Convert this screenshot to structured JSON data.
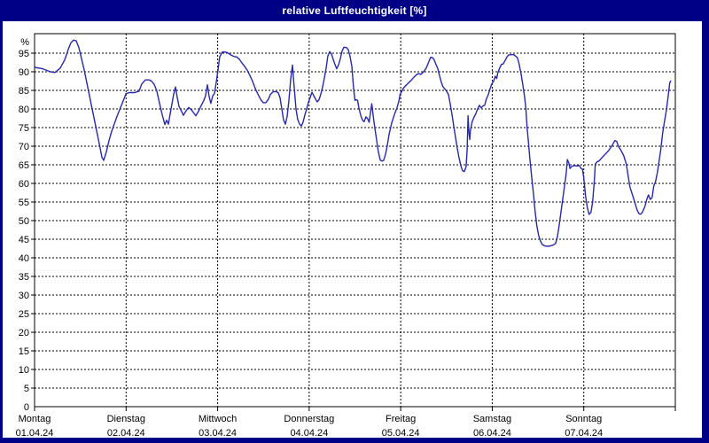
{
  "window": {
    "title": "relative Luftfeuchtigkeit [%]",
    "titlebar_color": "#000087",
    "border_color": "#000087",
    "background": "#ffffff"
  },
  "chart_data": {
    "type": "line",
    "title": "relative Luftfeuchtigkeit [%]",
    "y_unit_label": "%",
    "ylabel": "relative Luftfeuchtigkeit",
    "y_min": 0,
    "y_max": 100,
    "y_tick_step": 5,
    "y_ticks": [
      0,
      5,
      10,
      15,
      20,
      25,
      30,
      35,
      40,
      45,
      50,
      55,
      60,
      65,
      70,
      75,
      80,
      85,
      90,
      95
    ],
    "grid": "dashed",
    "legend": "none",
    "line_color": "#2828aa",
    "frame_color": "#000000",
    "x_days": [
      {
        "name": "Montag",
        "date": "01.04.24"
      },
      {
        "name": "Dienstag",
        "date": "02.04.24"
      },
      {
        "name": "Mittwoch",
        "date": "03.04.24"
      },
      {
        "name": "Donnerstag",
        "date": "04.04.24"
      },
      {
        "name": "Freitag",
        "date": "05.04.24"
      },
      {
        "name": "Samstag",
        "date": "06.04.24"
      },
      {
        "name": "Sonntag",
        "date": "07.04.24"
      }
    ],
    "points": [
      [
        0.0,
        91.2
      ],
      [
        0.087,
        90.8
      ],
      [
        0.174,
        90.0
      ],
      [
        0.223,
        89.8
      ],
      [
        0.281,
        91.0
      ],
      [
        0.329,
        93.2
      ],
      [
        0.368,
        96.0
      ],
      [
        0.397,
        97.8
      ],
      [
        0.426,
        98.5
      ],
      [
        0.455,
        98.3
      ],
      [
        0.484,
        96.5
      ],
      [
        0.513,
        93.5
      ],
      [
        0.542,
        90.5
      ],
      [
        0.571,
        87.0
      ],
      [
        0.6,
        83.5
      ],
      [
        0.629,
        80.0
      ],
      [
        0.658,
        76.5
      ],
      [
        0.687,
        73.0
      ],
      [
        0.716,
        69.5
      ],
      [
        0.736,
        67.0
      ],
      [
        0.755,
        66.2
      ],
      [
        0.784,
        68.5
      ],
      [
        0.813,
        71.5
      ],
      [
        0.842,
        74.0
      ],
      [
        0.871,
        76.0
      ],
      [
        0.9,
        78.0
      ],
      [
        0.929,
        79.8
      ],
      [
        0.958,
        81.5
      ],
      [
        0.987,
        83.3
      ],
      [
        0.997,
        84.1
      ],
      [
        1.036,
        84.4
      ],
      [
        1.094,
        84.4
      ],
      [
        1.142,
        84.8
      ],
      [
        1.171,
        86.7
      ],
      [
        1.21,
        87.8
      ],
      [
        1.249,
        87.8
      ],
      [
        1.278,
        87.5
      ],
      [
        1.307,
        86.6
      ],
      [
        1.336,
        84.8
      ],
      [
        1.365,
        81.5
      ],
      [
        1.394,
        78.5
      ],
      [
        1.423,
        75.8
      ],
      [
        1.443,
        77.0
      ],
      [
        1.462,
        75.9
      ],
      [
        1.491,
        80.0
      ],
      [
        1.52,
        84.0
      ],
      [
        1.539,
        85.9
      ],
      [
        1.559,
        83.1
      ],
      [
        1.578,
        80.7
      ],
      [
        1.607,
        79.3
      ],
      [
        1.626,
        78.3
      ],
      [
        1.655,
        79.5
      ],
      [
        1.684,
        80.4
      ],
      [
        1.713,
        79.8
      ],
      [
        1.743,
        78.8
      ],
      [
        1.762,
        78.2
      ],
      [
        1.791,
        79.4
      ],
      [
        1.82,
        80.9
      ],
      [
        1.849,
        82.3
      ],
      [
        1.868,
        83.5
      ],
      [
        1.888,
        86.5
      ],
      [
        1.907,
        83.3
      ],
      [
        1.926,
        81.5
      ],
      [
        1.946,
        83.5
      ],
      [
        1.965,
        84.2
      ],
      [
        1.984,
        87.0
      ],
      [
        2.004,
        90.5
      ],
      [
        2.023,
        94.0
      ],
      [
        2.052,
        95.3
      ],
      [
        2.081,
        95.3
      ],
      [
        2.11,
        95.1
      ],
      [
        2.139,
        94.6
      ],
      [
        2.178,
        94.1
      ],
      [
        2.207,
        94.0
      ],
      [
        2.236,
        93.4
      ],
      [
        2.265,
        92.4
      ],
      [
        2.294,
        91.5
      ],
      [
        2.324,
        90.4
      ],
      [
        2.353,
        89.0
      ],
      [
        2.382,
        87.4
      ],
      [
        2.411,
        85.5
      ],
      [
        2.44,
        84.0
      ],
      [
        2.469,
        82.6
      ],
      [
        2.498,
        81.7
      ],
      [
        2.527,
        81.7
      ],
      [
        2.556,
        82.7
      ],
      [
        2.575,
        83.9
      ],
      [
        2.604,
        84.6
      ],
      [
        2.633,
        84.7
      ],
      [
        2.662,
        84.4
      ],
      [
        2.682,
        83.0
      ],
      [
        2.701,
        80.0
      ],
      [
        2.72,
        77.1
      ],
      [
        2.74,
        75.9
      ],
      [
        2.759,
        78.0
      ],
      [
        2.778,
        82.0
      ],
      [
        2.798,
        88.0
      ],
      [
        2.817,
        91.8
      ],
      [
        2.836,
        86.0
      ],
      [
        2.856,
        80.0
      ],
      [
        2.875,
        77.2
      ],
      [
        2.894,
        76.0
      ],
      [
        2.914,
        75.4
      ],
      [
        2.933,
        76.4
      ],
      [
        2.952,
        78.3
      ],
      [
        2.972,
        80.0
      ],
      [
        2.991,
        81.7
      ],
      [
        3.011,
        83.1
      ],
      [
        3.03,
        84.5
      ],
      [
        3.059,
        83.1
      ],
      [
        3.088,
        81.9
      ],
      [
        3.108,
        82.5
      ],
      [
        3.127,
        84.0
      ],
      [
        3.146,
        85.8
      ],
      [
        3.166,
        88.3
      ],
      [
        3.185,
        91.0
      ],
      [
        3.204,
        94.2
      ],
      [
        3.224,
        95.4
      ],
      [
        3.243,
        94.8
      ],
      [
        3.272,
        92.6
      ],
      [
        3.301,
        90.8
      ],
      [
        3.32,
        91.8
      ],
      [
        3.34,
        93.5
      ],
      [
        3.359,
        95.5
      ],
      [
        3.379,
        96.6
      ],
      [
        3.408,
        96.5
      ],
      [
        3.427,
        95.9
      ],
      [
        3.446,
        94.2
      ],
      [
        3.466,
        91.5
      ],
      [
        3.485,
        85.5
      ],
      [
        3.5,
        82.3
      ],
      [
        3.514,
        82.5
      ],
      [
        3.529,
        82.3
      ],
      [
        3.543,
        80.3
      ],
      [
        3.563,
        78.3
      ],
      [
        3.582,
        77.0
      ],
      [
        3.601,
        76.6
      ],
      [
        3.621,
        77.9
      ],
      [
        3.64,
        77.3
      ],
      [
        3.655,
        76.4
      ],
      [
        3.669,
        79.0
      ],
      [
        3.684,
        81.4
      ],
      [
        3.698,
        78.3
      ],
      [
        3.718,
        74.8
      ],
      [
        3.737,
        71.6
      ],
      [
        3.756,
        68.5
      ],
      [
        3.776,
        66.3
      ],
      [
        3.795,
        66.0
      ],
      [
        3.814,
        66.2
      ],
      [
        3.834,
        67.8
      ],
      [
        3.853,
        70.2
      ],
      [
        3.872,
        73.0
      ],
      [
        3.901,
        76.2
      ],
      [
        3.93,
        78.4
      ],
      [
        3.959,
        80.3
      ],
      [
        3.979,
        82.0
      ],
      [
        3.993,
        83.9
      ],
      [
        4.008,
        84.6
      ],
      [
        4.027,
        85.5
      ],
      [
        4.056,
        86.3
      ],
      [
        4.085,
        87.0
      ],
      [
        4.114,
        87.7
      ],
      [
        4.143,
        88.5
      ],
      [
        4.172,
        89.2
      ],
      [
        4.192,
        89.5
      ],
      [
        4.221,
        89.3
      ],
      [
        4.25,
        90.0
      ],
      [
        4.279,
        91.0
      ],
      [
        4.308,
        92.8
      ],
      [
        4.327,
        93.9
      ],
      [
        4.347,
        93.8
      ],
      [
        4.366,
        93.2
      ],
      [
        4.385,
        92.0
      ],
      [
        4.405,
        90.8
      ],
      [
        4.424,
        89.0
      ],
      [
        4.443,
        87.2
      ],
      [
        4.463,
        85.9
      ],
      [
        4.492,
        85.1
      ],
      [
        4.521,
        83.9
      ],
      [
        4.54,
        81.5
      ],
      [
        4.56,
        78.5
      ],
      [
        4.579,
        75.5
      ],
      [
        4.598,
        72.5
      ],
      [
        4.617,
        69.5
      ],
      [
        4.637,
        67.0
      ],
      [
        4.656,
        64.8
      ],
      [
        4.675,
        63.4
      ],
      [
        4.695,
        63.2
      ],
      [
        4.714,
        64.5
      ],
      [
        4.726,
        69.0
      ],
      [
        4.735,
        78.2
      ],
      [
        4.746,
        73.5
      ],
      [
        4.755,
        71.8
      ],
      [
        4.762,
        74.3
      ],
      [
        4.782,
        76.7
      ],
      [
        4.801,
        77.8
      ],
      [
        4.82,
        78.7
      ],
      [
        4.84,
        80.0
      ],
      [
        4.859,
        81.0
      ],
      [
        4.878,
        80.3
      ],
      [
        4.898,
        80.8
      ],
      [
        4.917,
        81.0
      ],
      [
        4.936,
        82.7
      ],
      [
        4.956,
        83.8
      ],
      [
        4.975,
        85.3
      ],
      [
        4.994,
        86.7
      ],
      [
        5.014,
        87.4
      ],
      [
        5.033,
        88.8
      ],
      [
        5.048,
        88.2
      ],
      [
        5.062,
        89.8
      ],
      [
        5.081,
        91.0
      ],
      [
        5.101,
        92.0
      ],
      [
        5.12,
        92.1
      ],
      [
        5.139,
        93.0
      ],
      [
        5.159,
        93.9
      ],
      [
        5.178,
        94.5
      ],
      [
        5.207,
        94.6
      ],
      [
        5.236,
        94.6
      ],
      [
        5.256,
        94.2
      ],
      [
        5.275,
        93.8
      ],
      [
        5.294,
        92.0
      ],
      [
        5.314,
        89.5
      ],
      [
        5.333,
        86.7
      ],
      [
        5.352,
        83.5
      ],
      [
        5.367,
        80.3
      ],
      [
        5.381,
        74.8
      ],
      [
        5.396,
        71.0
      ],
      [
        5.41,
        66.8
      ],
      [
        5.43,
        62.0
      ],
      [
        5.449,
        57.5
      ],
      [
        5.468,
        52.5
      ],
      [
        5.488,
        48.5
      ],
      [
        5.507,
        46.0
      ],
      [
        5.526,
        44.5
      ],
      [
        5.546,
        43.6
      ],
      [
        5.575,
        43.2
      ],
      [
        5.604,
        43.1
      ],
      [
        5.633,
        43.2
      ],
      [
        5.662,
        43.4
      ],
      [
        5.691,
        43.8
      ],
      [
        5.71,
        45.5
      ],
      [
        5.73,
        48.5
      ],
      [
        5.749,
        52.0
      ],
      [
        5.768,
        55.5
      ],
      [
        5.788,
        59.0
      ],
      [
        5.807,
        62.5
      ],
      [
        5.821,
        66.4
      ],
      [
        5.836,
        65.5
      ],
      [
        5.85,
        64.0
      ],
      [
        5.865,
        64.5
      ],
      [
        5.894,
        64.8
      ],
      [
        5.923,
        64.7
      ],
      [
        5.952,
        64.8
      ],
      [
        5.971,
        64.0
      ],
      [
        5.986,
        63.8
      ],
      [
        6.0,
        61.5
      ],
      [
        6.02,
        56.5
      ],
      [
        6.039,
        53.5
      ],
      [
        6.058,
        51.7
      ],
      [
        6.078,
        52.2
      ],
      [
        6.097,
        55.0
      ],
      [
        6.116,
        61.0
      ],
      [
        6.126,
        65.2
      ],
      [
        6.145,
        65.8
      ],
      [
        6.165,
        66.0
      ],
      [
        6.194,
        66.8
      ],
      [
        6.233,
        67.8
      ],
      [
        6.271,
        68.8
      ],
      [
        6.31,
        70.2
      ],
      [
        6.339,
        71.5
      ],
      [
        6.359,
        71.3
      ],
      [
        6.378,
        70.0
      ],
      [
        6.407,
        68.8
      ],
      [
        6.436,
        67.5
      ],
      [
        6.465,
        65.2
      ],
      [
        6.485,
        62.0
      ],
      [
        6.504,
        59.0
      ],
      [
        6.533,
        56.8
      ],
      [
        6.562,
        54.5
      ],
      [
        6.581,
        53.0
      ],
      [
        6.601,
        51.9
      ],
      [
        6.62,
        51.7
      ],
      [
        6.639,
        52.2
      ],
      [
        6.668,
        53.8
      ],
      [
        6.688,
        55.7
      ],
      [
        6.707,
        56.9
      ],
      [
        6.726,
        55.7
      ],
      [
        6.746,
        56.2
      ],
      [
        6.765,
        59.3
      ],
      [
        6.784,
        60.5
      ],
      [
        6.804,
        63.0
      ],
      [
        6.823,
        66.0
      ],
      [
        6.843,
        69.5
      ],
      [
        6.862,
        73.5
      ],
      [
        6.881,
        76.5
      ],
      [
        6.901,
        79.5
      ],
      [
        6.92,
        83.0
      ],
      [
        6.939,
        87.0
      ],
      [
        6.949,
        87.5
      ]
    ]
  }
}
